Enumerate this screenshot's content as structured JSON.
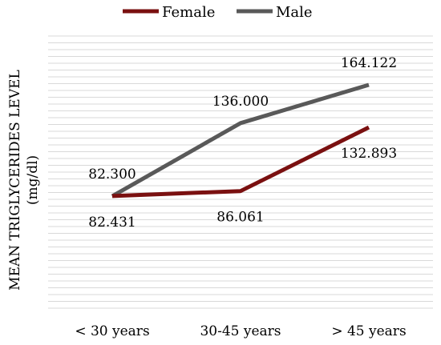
{
  "chart_data": {
    "type": "line",
    "categories": [
      "< 30 years",
      "30-45 years",
      "> 45 years"
    ],
    "series": [
      {
        "name": "Female",
        "values": [
          82.431,
          86.061,
          132.893
        ],
        "labels": [
          "82.431",
          "86.061",
          "132.893"
        ],
        "color": "#7a1010"
      },
      {
        "name": "Male",
        "values": [
          82.3,
          136.0,
          164.122
        ],
        "labels": [
          "82.300",
          "136.000",
          "164.122"
        ],
        "color": "#595959"
      }
    ],
    "title": "",
    "xlabel": "",
    "ylabel": "MEAN TRIGLYCERIDES LEVEL (mg/dl)",
    "ylim": [
      0,
      200
    ],
    "grid": true,
    "legend_position": "top"
  }
}
